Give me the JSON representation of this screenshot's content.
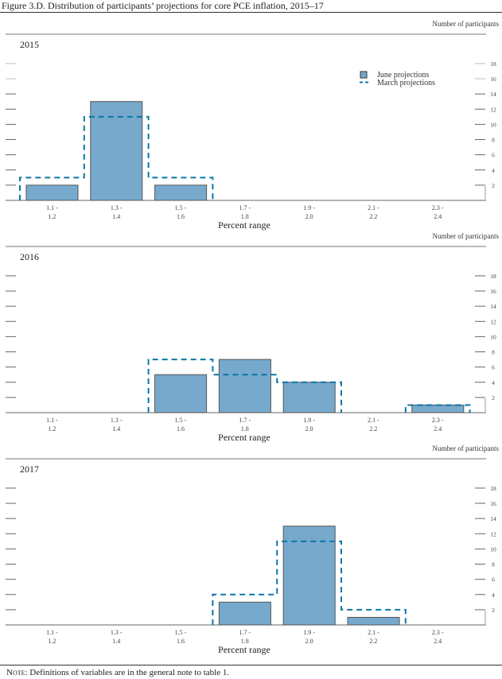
{
  "title": "Figure 3.D. Distribution of participants’ projections for core PCE inflation, 2015–17",
  "note_label": "Note",
  "note_text": ": Definitions of variables are in the general note to table 1.",
  "colors": {
    "june_fill": "#77a9cd",
    "june_stroke": "#555555",
    "march": "#0a77a8",
    "grid": "#999999"
  },
  "chart_data": [
    {
      "type": "bar",
      "title": "2015",
      "xlabel": "Percent range",
      "ylabel": "Number of participants",
      "categories": [
        [
          "1.1 -",
          "1.2"
        ],
        [
          "1.3 -",
          "1.4"
        ],
        [
          "1.5 -",
          "1.6"
        ],
        [
          "1.7 -",
          "1.8"
        ],
        [
          "1.9 -",
          "2.0"
        ],
        [
          "2.1 -",
          "2.2"
        ],
        [
          "2.3 -",
          "2.4"
        ]
      ],
      "yticks": [
        2,
        4,
        6,
        8,
        10,
        12,
        14,
        16,
        18
      ],
      "ylim": [
        0,
        19
      ],
      "legend": {
        "placement": "top-right",
        "entries": [
          "June projections",
          "March projections"
        ]
      },
      "series": [
        {
          "name": "June projections",
          "style": "bar",
          "values": [
            2,
            13,
            2,
            0,
            0,
            0,
            0
          ]
        },
        {
          "name": "March projections",
          "style": "dashed-step",
          "values": [
            3,
            11,
            3,
            0,
            0,
            0,
            0
          ]
        }
      ]
    },
    {
      "type": "bar",
      "title": "2016",
      "xlabel": "Percent range",
      "ylabel": "Number of participants",
      "categories": [
        [
          "1.1 -",
          "1.2"
        ],
        [
          "1.3 -",
          "1.4"
        ],
        [
          "1.5 -",
          "1.6"
        ],
        [
          "1.7 -",
          "1.8"
        ],
        [
          "1.9 -",
          "2.0"
        ],
        [
          "2.1 -",
          "2.2"
        ],
        [
          "2.3 -",
          "2.4"
        ]
      ],
      "yticks": [
        2,
        4,
        6,
        8,
        10,
        12,
        14,
        16,
        18
      ],
      "ylim": [
        0,
        19
      ],
      "series": [
        {
          "name": "June projections",
          "style": "bar",
          "values": [
            0,
            0,
            5,
            7,
            4,
            0,
            1
          ]
        },
        {
          "name": "March projections",
          "style": "dashed-step",
          "values": [
            0,
            0,
            7,
            5,
            4,
            0,
            1
          ]
        }
      ]
    },
    {
      "type": "bar",
      "title": "2017",
      "xlabel": "Percent range",
      "ylabel": "Number of participants",
      "categories": [
        [
          "1.1 -",
          "1.2"
        ],
        [
          "1.3 -",
          "1.4"
        ],
        [
          "1.5 -",
          "1.6"
        ],
        [
          "1.7 -",
          "1.8"
        ],
        [
          "1.9 -",
          "2.0"
        ],
        [
          "2.1 -",
          "2.2"
        ],
        [
          "2.3 -",
          "2.4"
        ]
      ],
      "yticks": [
        2,
        4,
        6,
        8,
        10,
        12,
        14,
        16,
        18
      ],
      "ylim": [
        0,
        19
      ],
      "series": [
        {
          "name": "June projections",
          "style": "bar",
          "values": [
            0,
            0,
            0,
            3,
            13,
            1,
            0
          ]
        },
        {
          "name": "March projections",
          "style": "dashed-step",
          "values": [
            0,
            0,
            0,
            4,
            11,
            2,
            0
          ]
        }
      ]
    }
  ]
}
